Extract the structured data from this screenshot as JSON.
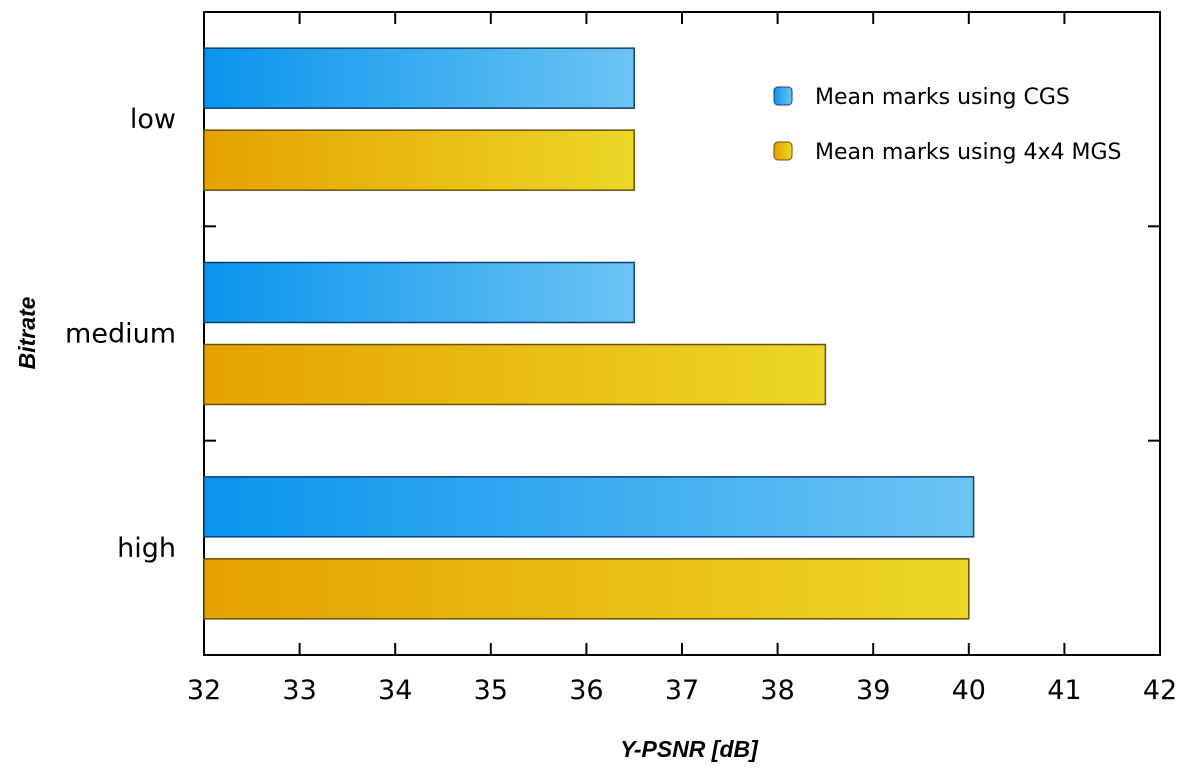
{
  "chart_data": {
    "type": "bar",
    "orientation": "horizontal",
    "categories": [
      "low",
      "medium",
      "high"
    ],
    "series": [
      {
        "name": "Mean marks using CGS",
        "values": [
          36.5,
          36.5,
          40.05
        ]
      },
      {
        "name": "Mean marks using 4x4 MGS",
        "values": [
          36.5,
          38.5,
          40.0
        ]
      }
    ],
    "xlabel": "Y-PSNR [dB]",
    "ylabel": "Bitrate",
    "xlim": [
      32,
      42
    ],
    "xticks": [
      "32",
      "33",
      "34",
      "35",
      "36",
      "37",
      "38",
      "39",
      "40",
      "41",
      "42"
    ],
    "legend_position": "top-right",
    "grid": false,
    "colors": {
      "cgs_start": "#0895ee",
      "cgs_end": "#6cc4f2",
      "cgs_stroke": "#0c3f78",
      "mgs_start": "#e5a200",
      "mgs_end": "#ecd628",
      "mgs_stroke": "#6b5000"
    }
  }
}
